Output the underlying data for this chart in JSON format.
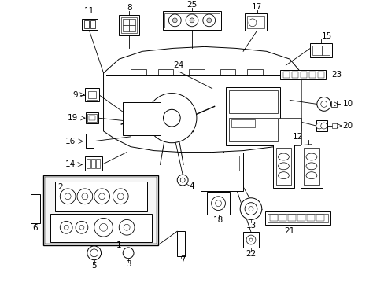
{
  "bg_color": "#ffffff",
  "lc": "#000000",
  "lw": 0.7,
  "fs": 7.5,
  "fig_width": 4.89,
  "fig_height": 3.6,
  "dpi": 100
}
